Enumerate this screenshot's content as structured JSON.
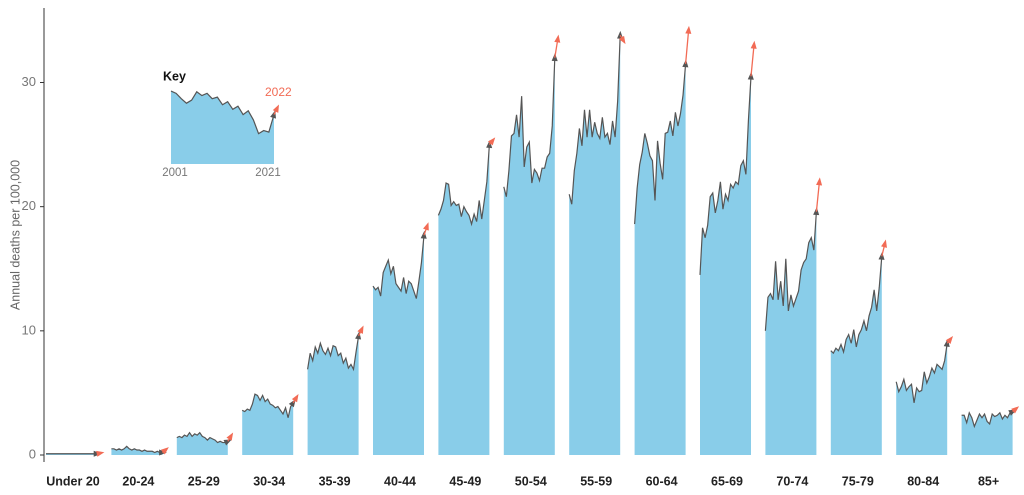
{
  "chart_data": {
    "type": "small-multiple-area",
    "y_label": "Annual deaths per 100,000",
    "ylim": [
      0,
      36
    ],
    "yticks": [
      0,
      10,
      20,
      30
    ],
    "fill_color": "#89cde9",
    "line_color": "#555555",
    "highlight_color": "#f26b55",
    "series": [
      {
        "name": "Under 20",
        "values": [
          0.1,
          0.1,
          0.1,
          0.1,
          0.1,
          0.1,
          0.1,
          0.1,
          0.1,
          0.1,
          0.1,
          0.1,
          0.1,
          0.1,
          0.1,
          0.1,
          0.1,
          0.1,
          0.1,
          0.1,
          0.1
        ],
        "value_2022": 0.15
      },
      {
        "name": "20-24",
        "values": [
          0.5,
          0.5,
          0.4,
          0.5,
          0.4,
          0.5,
          0.7,
          0.5,
          0.4,
          0.5,
          0.4,
          0.4,
          0.3,
          0.4,
          0.3,
          0.3,
          0.3,
          0.2,
          0.3,
          0.2,
          0.2
        ],
        "value_2022": 0.4
      },
      {
        "name": "25-29",
        "values": [
          1.4,
          1.5,
          1.4,
          1.6,
          1.5,
          1.8,
          1.5,
          1.7,
          1.6,
          1.8,
          1.5,
          1.4,
          1.2,
          1.4,
          1.3,
          1.2,
          1.0,
          1.1,
          1.0,
          1.0,
          1.1
        ],
        "value_2022": 1.5
      },
      {
        "name": "30-34",
        "values": [
          3.6,
          3.5,
          3.7,
          3.6,
          4.1,
          4.9,
          4.8,
          4.4,
          4.8,
          4.3,
          4.5,
          4.1,
          4.0,
          3.8,
          3.9,
          3.6,
          3.3,
          3.8,
          3.0,
          3.9,
          4.2
        ],
        "value_2022": 4.6
      },
      {
        "name": "35-39",
        "values": [
          6.9,
          8.2,
          7.6,
          8.7,
          8.2,
          9.0,
          8.4,
          8.1,
          8.6,
          8.0,
          8.8,
          8.7,
          8.0,
          8.2,
          7.4,
          7.8,
          7.0,
          7.3,
          6.9,
          8.3,
          9.6
        ],
        "value_2022": 10.1
      },
      {
        "name": "40-44",
        "values": [
          13.6,
          13.3,
          13.5,
          12.8,
          14.7,
          15.2,
          15.7,
          14.6,
          15.2,
          13.8,
          13.5,
          13.2,
          14.3,
          13.0,
          14.0,
          13.8,
          13.2,
          12.6,
          14.0,
          15.5,
          17.7
        ],
        "value_2022": 18.4
      },
      {
        "name": "45-49",
        "values": [
          19.3,
          19.8,
          20.5,
          21.9,
          21.8,
          20.1,
          20.4,
          20.1,
          20.2,
          19.2,
          20.0,
          19.6,
          19.3,
          18.6,
          19.4,
          18.8,
          20.5,
          19.0,
          20.5,
          22.0,
          25.0
        ],
        "value_2022": 25.3
      },
      {
        "name": "50-54",
        "values": [
          21.6,
          20.8,
          22.9,
          25.7,
          25.9,
          27.4,
          25.6,
          28.9,
          23.2,
          24.8,
          25.2,
          21.9,
          23.0,
          22.7,
          22.1,
          23.1,
          23.1,
          24.0,
          24.3,
          26.5,
          32.0
        ],
        "value_2022": 33.5
      },
      {
        "name": "55-59",
        "values": [
          21.0,
          20.2,
          22.9,
          24.3,
          26.3,
          24.9,
          27.8,
          25.6,
          27.8,
          25.6,
          26.8,
          25.9,
          25.5,
          27.2,
          25.6,
          25.9,
          25.0,
          26.9,
          25.6,
          28.5,
          33.8
        ],
        "value_2022": 33.4
      },
      {
        "name": "60-64",
        "values": [
          18.6,
          21.5,
          23.4,
          24.4,
          25.9,
          25.1,
          24.1,
          23.7,
          20.5,
          25.3,
          23.5,
          22.2,
          25.9,
          26.0,
          26.9,
          25.7,
          27.6,
          26.5,
          27.5,
          29.0,
          31.5
        ],
        "value_2022": 34.2
      },
      {
        "name": "65-69",
        "values": [
          14.5,
          18.3,
          17.5,
          18.5,
          20.8,
          21.1,
          19.5,
          20.5,
          22.0,
          19.8,
          21.0,
          20.5,
          21.8,
          21.5,
          22.0,
          21.8,
          23.3,
          23.7,
          22.6,
          27.0,
          30.5
        ],
        "value_2022": 33.0
      },
      {
        "name": "70-74",
        "values": [
          10.0,
          12.7,
          13.0,
          12.5,
          15.6,
          12.5,
          14.0,
          12.0,
          15.8,
          11.6,
          12.9,
          12.0,
          12.6,
          13.2,
          14.9,
          15.5,
          15.8,
          17.1,
          17.5,
          16.5,
          19.6
        ],
        "value_2022": 22.0
      },
      {
        "name": "75-79",
        "values": [
          8.4,
          8.2,
          8.6,
          8.4,
          8.9,
          8.3,
          9.3,
          9.7,
          9.0,
          10.1,
          8.7,
          9.7,
          10.1,
          10.8,
          10.0,
          11.2,
          11.9,
          13.3,
          11.6,
          13.5,
          16.0
        ],
        "value_2022": 17.0
      },
      {
        "name": "80-84",
        "values": [
          5.9,
          5.1,
          5.5,
          6.1,
          5.2,
          5.5,
          5.7,
          4.2,
          5.4,
          5.1,
          5.2,
          6.7,
          5.8,
          6.3,
          7.0,
          6.6,
          7.3,
          7.1,
          6.9,
          7.6,
          9.0
        ],
        "value_2022": 9.3
      },
      {
        "name": "85+",
        "values": [
          3.2,
          3.2,
          2.6,
          3.4,
          3.0,
          2.3,
          2.8,
          3.3,
          3.0,
          3.3,
          2.7,
          2.5,
          3.3,
          3.1,
          3.2,
          3.4,
          2.9,
          3.2,
          3.0,
          3.4,
          3.5
        ],
        "value_2022": 3.7
      }
    ],
    "key": {
      "title": "Key",
      "start_label": "2001",
      "end_label": "2021",
      "highlight_label": "2022",
      "ylim": [
        0,
        10
      ],
      "values": [
        9.6,
        9.3,
        8.6,
        8.0,
        8.4,
        9.5,
        9.0,
        9.3,
        8.6,
        8.8,
        7.8,
        8.2,
        7.2,
        7.6,
        6.5,
        7.0,
        5.8,
        4.0,
        4.4,
        4.2,
        6.5
      ],
      "value_2022": 7.3
    }
  }
}
